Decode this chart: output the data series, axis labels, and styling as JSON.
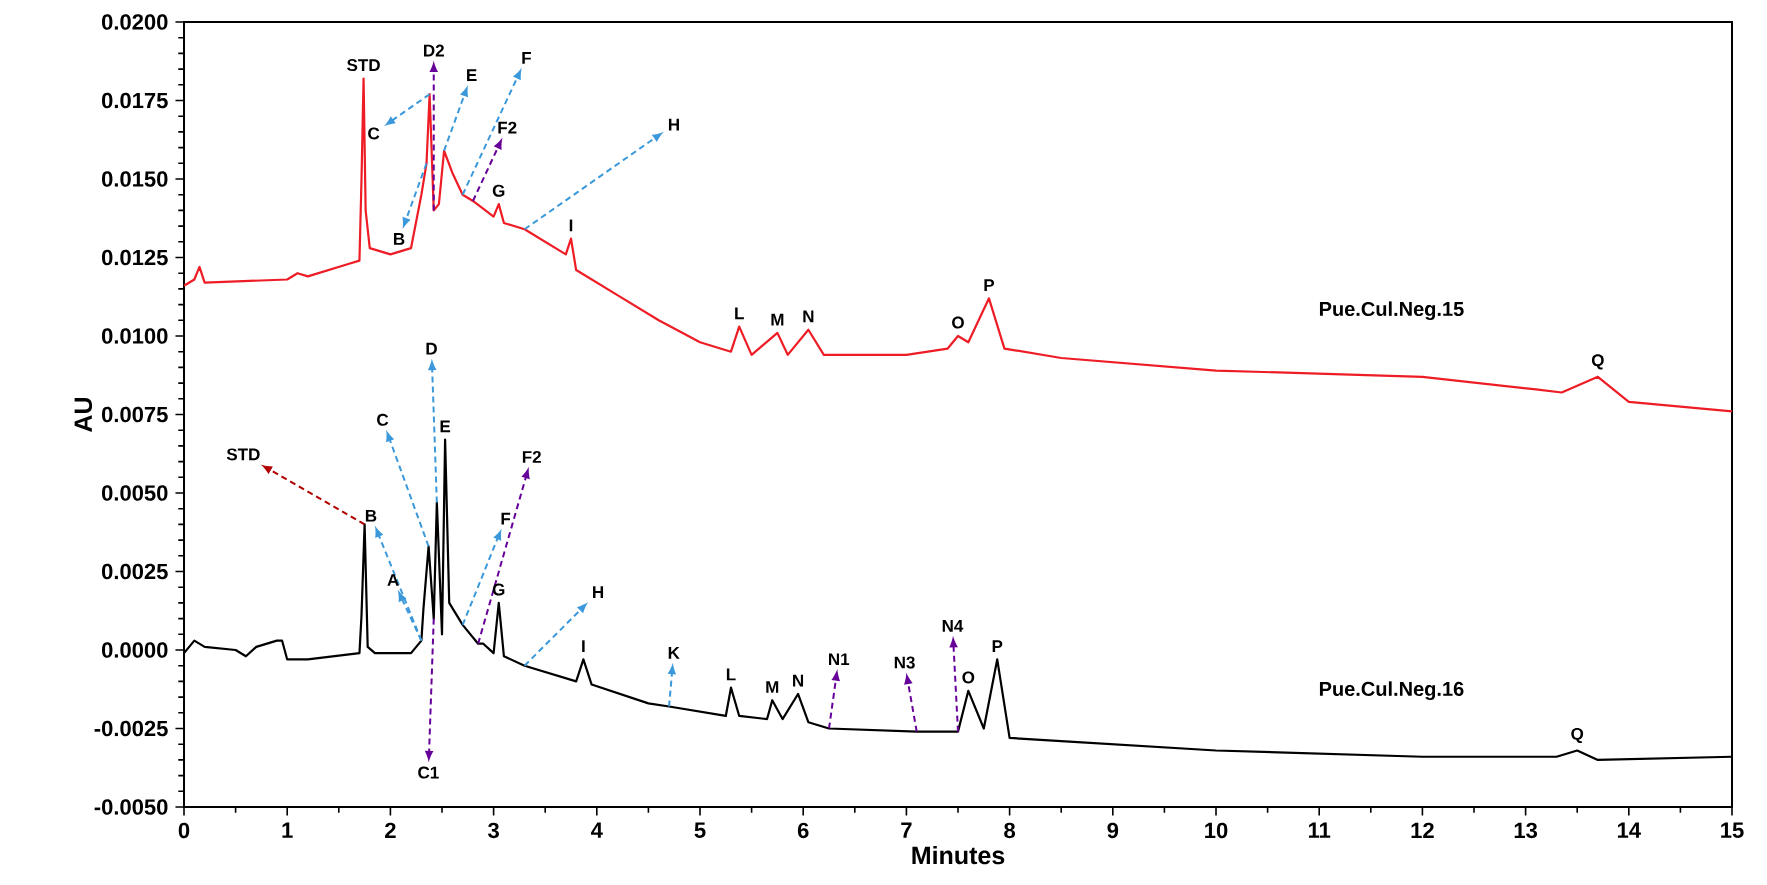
{
  "chart_data": {
    "type": "line",
    "xlabel": "Minutes",
    "ylabel": "AU",
    "xlim": [
      0,
      15
    ],
    "ylim": [
      -0.005,
      0.02
    ],
    "xticks": [
      0,
      1,
      2,
      3,
      4,
      5,
      6,
      7,
      8,
      9,
      10,
      11,
      12,
      13,
      14,
      15
    ],
    "yticks": [
      {
        "value": -0.005,
        "label": "-0.0050"
      },
      {
        "value": -0.0025,
        "label": "-0.0025"
      },
      {
        "value": 0,
        "label": "0.0000"
      },
      {
        "value": 0.0025,
        "label": "0.0025"
      },
      {
        "value": 0.005,
        "label": "0.0050"
      },
      {
        "value": 0.0075,
        "label": "0.0075"
      },
      {
        "value": 0.01,
        "label": "0.0100"
      },
      {
        "value": 0.0125,
        "label": "0.0125"
      },
      {
        "value": 0.015,
        "label": "0.0150"
      },
      {
        "value": 0.0175,
        "label": "0.0175"
      },
      {
        "value": 0.02,
        "label": "0.0200"
      }
    ],
    "grid": false,
    "legend": false,
    "marker": "none",
    "line_style": "solid",
    "series": [
      {
        "name": "Pue.Cul.Neg.15",
        "color": "#ee1c25",
        "x": [
          0,
          0.1,
          0.15,
          0.2,
          1.0,
          1.1,
          1.2,
          1.6,
          1.7,
          1.72,
          1.74,
          1.76,
          1.8,
          2.0,
          2.2,
          2.3,
          2.35,
          2.38,
          2.42,
          2.47,
          2.52,
          2.6,
          2.7,
          2.8,
          3.0,
          3.05,
          3.1,
          3.3,
          3.5,
          3.7,
          3.75,
          3.8,
          4.2,
          4.6,
          5.0,
          5.3,
          5.38,
          5.5,
          5.75,
          5.85,
          6.05,
          6.2,
          7.0,
          7.4,
          7.5,
          7.6,
          7.8,
          7.95,
          8.5,
          10,
          12,
          13.1,
          13.35,
          13.7,
          14.0,
          15.0
        ],
        "values": [
          0.0116,
          0.0118,
          0.0122,
          0.0117,
          0.0118,
          0.012,
          0.0119,
          0.0123,
          0.0124,
          0.015,
          0.0182,
          0.014,
          0.0128,
          0.0126,
          0.0128,
          0.0145,
          0.0155,
          0.0177,
          0.014,
          0.0142,
          0.0159,
          0.0152,
          0.0145,
          0.0143,
          0.0138,
          0.0142,
          0.0136,
          0.0134,
          0.013,
          0.0126,
          0.0131,
          0.0121,
          0.0113,
          0.0105,
          0.0098,
          0.0095,
          0.0103,
          0.0094,
          0.0101,
          0.0094,
          0.0102,
          0.0094,
          0.0094,
          0.0096,
          0.01,
          0.0098,
          0.0112,
          0.0096,
          0.0093,
          0.0089,
          0.0087,
          0.0083,
          0.0082,
          0.0087,
          0.0079,
          0.0076
        ]
      },
      {
        "name": "Pue.Cul.Neg.16",
        "color": "#000000",
        "x": [
          0,
          0.1,
          0.2,
          0.5,
          0.6,
          0.7,
          0.9,
          0.95,
          1.0,
          1.2,
          1.7,
          1.72,
          1.75,
          1.78,
          1.85,
          2.2,
          2.3,
          2.32,
          2.37,
          2.42,
          2.45,
          2.5,
          2.53,
          2.57,
          2.7,
          2.85,
          2.9,
          3.0,
          3.05,
          3.1,
          3.3,
          3.8,
          3.87,
          3.95,
          4.5,
          4.7,
          5.25,
          5.3,
          5.38,
          5.65,
          5.7,
          5.8,
          5.95,
          6.05,
          6.25,
          7.1,
          7.5,
          7.6,
          7.75,
          7.88,
          8.0,
          8.5,
          10,
          12,
          13.3,
          13.5,
          13.7,
          15
        ],
        "values": [
          -0.0001,
          0.0003,
          0.0001,
          0.0,
          -0.0002,
          0.0001,
          0.0003,
          0.0003,
          -0.0003,
          -0.0003,
          -0.0001,
          0.0011,
          0.004,
          0.0001,
          -0.0001,
          -0.0001,
          0.0003,
          0.0013,
          0.0033,
          0.001,
          0.0047,
          0.0005,
          0.0067,
          0.0015,
          0.0008,
          0.0002,
          0.0002,
          -0.0001,
          0.0015,
          -0.0002,
          -0.0005,
          -0.001,
          -0.0003,
          -0.0011,
          -0.0017,
          -0.0018,
          -0.0021,
          -0.0012,
          -0.0021,
          -0.0022,
          -0.0016,
          -0.0022,
          -0.0014,
          -0.0023,
          -0.0025,
          -0.0026,
          -0.0026,
          -0.0013,
          -0.0025,
          -0.0003,
          -0.0028,
          -0.0029,
          -0.0032,
          -0.0034,
          -0.0034,
          -0.0032,
          -0.0035,
          -0.0034
        ]
      }
    ],
    "annotations": [
      {
        "text": "STD",
        "x": 1.74,
        "y": 0.0182
      },
      {
        "text": "D2",
        "x": 2.42,
        "y": 0.014
      },
      {
        "text": "F",
        "x": 2.7,
        "y": 0.0145
      },
      {
        "text": "C",
        "x": 2.38,
        "y": 0.0177
      },
      {
        "text": "E",
        "x": 2.52,
        "y": 0.0159
      },
      {
        "text": "H",
        "x": 3.3,
        "y": 0.0134
      },
      {
        "text": "F2",
        "x": 2.8,
        "y": 0.0143
      },
      {
        "text": "B",
        "x": 2.35,
        "y": 0.0155
      },
      {
        "text": "G",
        "x": 3.05,
        "y": 0.0142
      },
      {
        "text": "I",
        "x": 3.75,
        "y": 0.0131
      },
      {
        "text": "L",
        "x": 5.38,
        "y": 0.0103
      },
      {
        "text": "M",
        "x": 5.75,
        "y": 0.0101
      },
      {
        "text": "N",
        "x": 6.05,
        "y": 0.0102
      },
      {
        "text": "O",
        "x": 7.5,
        "y": 0.01
      },
      {
        "text": "P",
        "x": 7.8,
        "y": 0.0112
      },
      {
        "text": "Q",
        "x": 13.7,
        "y": 0.0087
      },
      {
        "text": "D",
        "x": 2.45,
        "y": 0.0047
      },
      {
        "text": "C",
        "x": 2.37,
        "y": 0.0033
      },
      {
        "text": "E",
        "x": 2.53,
        "y": 0.0067
      },
      {
        "text": "STD",
        "x": 1.75,
        "y": 0.004
      },
      {
        "text": "B",
        "x": 2.3,
        "y": 0.0003
      },
      {
        "text": "F2",
        "x": 2.85,
        "y": 0.0002
      },
      {
        "text": "F",
        "x": 2.7,
        "y": 0.0008
      },
      {
        "text": "A",
        "x": 2.3,
        "y": 0.0003
      },
      {
        "text": "G",
        "x": 3.05,
        "y": 0.0015
      },
      {
        "text": "H",
        "x": 3.3,
        "y": -0.0005
      },
      {
        "text": "I",
        "x": 3.87,
        "y": -0.0003
      },
      {
        "text": "K",
        "x": 4.7,
        "y": -0.0018
      },
      {
        "text": "L",
        "x": 5.3,
        "y": -0.0012
      },
      {
        "text": "M",
        "x": 5.7,
        "y": -0.0016
      },
      {
        "text": "N",
        "x": 5.95,
        "y": -0.0014
      },
      {
        "text": "N1",
        "x": 6.25,
        "y": -0.0025
      },
      {
        "text": "N3",
        "x": 7.1,
        "y": -0.0026
      },
      {
        "text": "N4",
        "x": 7.5,
        "y": -0.0026
      },
      {
        "text": "O",
        "x": 7.6,
        "y": -0.0013
      },
      {
        "text": "P",
        "x": 7.88,
        "y": -0.0003
      },
      {
        "text": "Q",
        "x": 13.5,
        "y": -0.0032
      },
      {
        "text": "C1",
        "x": 2.42,
        "y": 0.001
      }
    ]
  }
}
